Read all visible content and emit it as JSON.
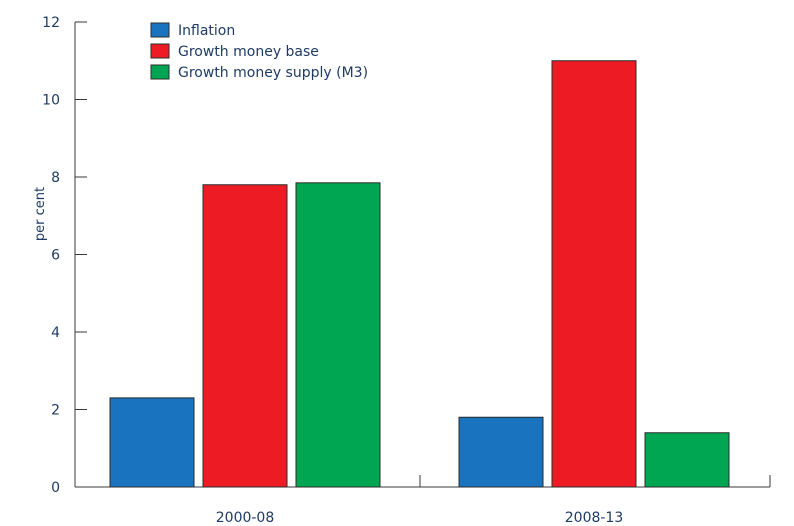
{
  "chart_data": {
    "type": "bar",
    "title": "",
    "xlabel": "",
    "ylabel": "per cent",
    "ylim": [
      0,
      12
    ],
    "yticks": [
      0,
      2,
      4,
      6,
      8,
      10,
      12
    ],
    "categories": [
      "2000-08",
      "2008-13"
    ],
    "series": [
      {
        "name": "Inflation",
        "color": "#1a73bf",
        "values": [
          2.3,
          1.8
        ]
      },
      {
        "name": "Growth money base",
        "color": "#ed1c24",
        "values": [
          7.8,
          11.0
        ]
      },
      {
        "name": "Growth money supply (M3)",
        "color": "#00a651",
        "values": [
          7.85,
          1.4
        ]
      }
    ],
    "grid": false,
    "legend": "top-left"
  }
}
